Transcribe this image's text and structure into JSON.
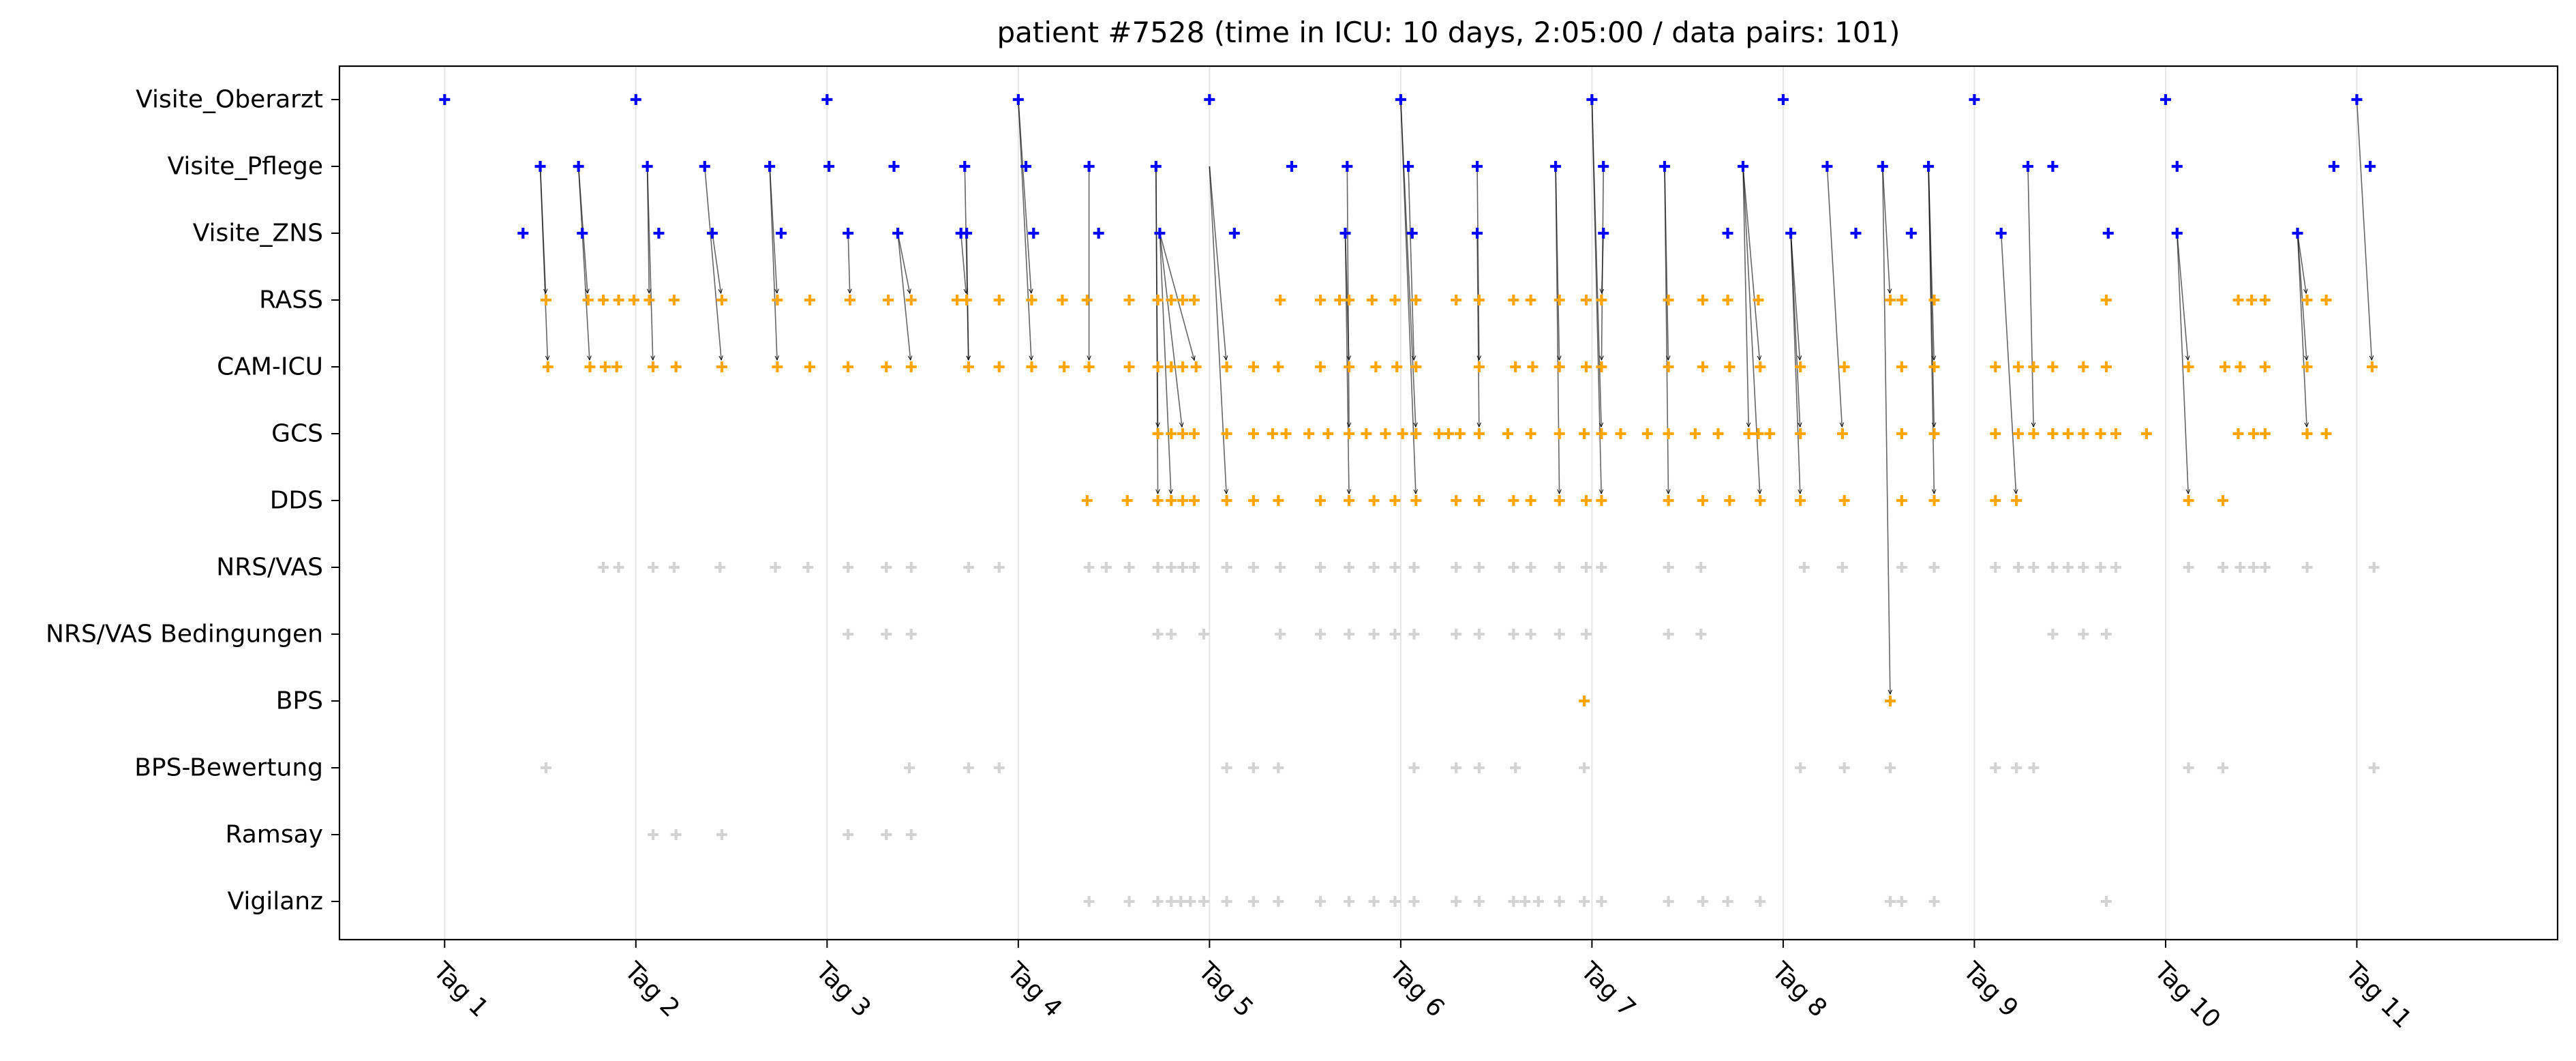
{
  "chart_data": {
    "type": "scatter",
    "title": "patient #7528 (time in ICU: 10 days, 2:05:00 / data pairs: 101)",
    "xlabel": "",
    "ylabel": "",
    "xlim": [
      0.45,
      12.05
    ],
    "x_tick_labels": [
      "Tag 1",
      "Tag 2",
      "Tag 3",
      "Tag 4",
      "Tag 5",
      "Tag 6",
      "Tag 7",
      "Tag 8",
      "Tag 9",
      "Tag 10",
      "Tag 11"
    ],
    "x_ticks": [
      1,
      2,
      3,
      4,
      5,
      6,
      7,
      8,
      9,
      10,
      11
    ],
    "vertical_grid": true,
    "categories": [
      "Visite_Oberarzt",
      "Visite_Pflege",
      "Visite_ZNS",
      "RASS",
      "CAM-ICU",
      "GCS",
      "DDS",
      "NRS/VAS",
      "NRS/VAS Bedingungen",
      "BPS",
      "BPS-Bewertung",
      "Ramsay",
      "Vigilanz"
    ],
    "colors": {
      "visit": "#0000ff",
      "paired": "#ffa500",
      "unpaired": "#d3d3d3",
      "arrow": "#000000"
    },
    "series": [
      {
        "category": "Visite_Oberarzt",
        "color": "#0000ff",
        "x": [
          1.0,
          2.0,
          3.0,
          4.0,
          5.0,
          6.0,
          7.0,
          8.0,
          9.0,
          10.0,
          11.0
        ]
      },
      {
        "category": "Visite_Pflege",
        "color": "#0000ff",
        "x": [
          1.5,
          1.7,
          2.06,
          2.36,
          2.7,
          3.01,
          3.35,
          3.72,
          4.04,
          4.37,
          4.72,
          5.43,
          5.72,
          6.04,
          6.4,
          6.81,
          7.06,
          7.38,
          7.79,
          8.23,
          8.52,
          8.76,
          9.28,
          9.41,
          10.06,
          10.88,
          11.07
        ]
      },
      {
        "category": "Visite_ZNS",
        "color": "#0000ff",
        "x": [
          1.41,
          1.72,
          2.12,
          2.4,
          2.76,
          3.11,
          3.37,
          3.7,
          3.73,
          4.08,
          4.42,
          4.74,
          5.13,
          5.71,
          6.06,
          6.4,
          7.06,
          7.71,
          8.04,
          8.38,
          8.67,
          9.14,
          9.7,
          10.06,
          10.69
        ]
      },
      {
        "category": "RASS",
        "color": "#ffa500",
        "x": [
          1.53,
          1.75,
          1.83,
          1.91,
          1.99,
          2.07,
          2.2,
          2.45,
          2.74,
          2.91,
          3.12,
          3.32,
          3.44,
          3.68,
          3.73,
          3.9,
          4.07,
          4.23,
          4.36,
          4.58,
          4.73,
          4.8,
          4.86,
          4.92,
          5.37,
          5.58,
          5.68,
          5.73,
          5.85,
          5.97,
          6.08,
          6.29,
          6.41,
          6.59,
          6.68,
          6.83,
          6.97,
          7.05,
          7.4,
          7.58,
          7.71,
          7.87,
          8.56,
          8.62,
          8.79,
          9.69,
          10.38,
          10.45,
          10.52,
          10.74,
          10.84
        ]
      },
      {
        "category": "CAM-ICU",
        "color": "#ffa500",
        "x": [
          1.54,
          1.76,
          1.84,
          1.9,
          2.09,
          2.21,
          2.45,
          2.74,
          2.91,
          3.11,
          3.31,
          3.44,
          3.74,
          3.9,
          4.07,
          4.24,
          4.37,
          4.58,
          4.73,
          4.8,
          4.86,
          4.93,
          5.09,
          5.23,
          5.36,
          5.58,
          5.73,
          5.87,
          5.98,
          6.08,
          6.41,
          6.6,
          6.69,
          6.83,
          6.97,
          7.05,
          7.4,
          7.58,
          7.72,
          7.88,
          8.09,
          8.32,
          8.62,
          8.79,
          9.11,
          9.23,
          9.31,
          9.41,
          9.57,
          9.69,
          10.12,
          10.31,
          10.39,
          10.52,
          10.74,
          11.08
        ]
      },
      {
        "category": "GCS",
        "color": "#ffa500",
        "x": [
          4.73,
          4.8,
          4.86,
          4.92,
          5.09,
          5.23,
          5.33,
          5.4,
          5.52,
          5.62,
          5.73,
          5.82,
          5.92,
          6.01,
          6.08,
          6.2,
          6.25,
          6.31,
          6.41,
          6.56,
          6.68,
          6.83,
          6.96,
          7.05,
          7.15,
          7.29,
          7.4,
          7.54,
          7.66,
          7.82,
          7.87,
          7.93,
          8.09,
          8.31,
          8.62,
          8.79,
          9.11,
          9.23,
          9.31,
          9.41,
          9.49,
          9.57,
          9.66,
          9.74,
          9.9,
          10.38,
          10.46,
          10.52,
          10.74,
          10.84
        ]
      },
      {
        "category": "DDS",
        "color": "#ffa500",
        "x": [
          4.36,
          4.57,
          4.73,
          4.8,
          4.86,
          4.92,
          5.09,
          5.23,
          5.36,
          5.58,
          5.73,
          5.86,
          5.97,
          6.08,
          6.29,
          6.41,
          6.59,
          6.68,
          6.83,
          6.97,
          7.05,
          7.4,
          7.58,
          7.72,
          7.88,
          8.09,
          8.32,
          8.62,
          8.79,
          9.11,
          9.22,
          10.12,
          10.3
        ]
      },
      {
        "category": "NRS/VAS",
        "color": "#d3d3d3",
        "x": [
          1.83,
          1.91,
          2.09,
          2.2,
          2.44,
          2.73,
          2.9,
          3.11,
          3.31,
          3.44,
          3.74,
          3.9,
          4.37,
          4.46,
          4.58,
          4.73,
          4.8,
          4.86,
          4.92,
          5.09,
          5.23,
          5.37,
          5.58,
          5.73,
          5.86,
          5.97,
          6.07,
          6.29,
          6.41,
          6.59,
          6.68,
          6.83,
          6.97,
          7.05,
          7.4,
          7.57,
          8.11,
          8.31,
          8.62,
          8.79,
          9.11,
          9.23,
          9.31,
          9.41,
          9.49,
          9.57,
          9.66,
          9.74,
          10.12,
          10.3,
          10.39,
          10.46,
          10.52,
          10.74,
          11.09
        ]
      },
      {
        "category": "NRS/VAS Bedingungen",
        "color": "#d3d3d3",
        "x": [
          3.11,
          3.31,
          3.44,
          4.73,
          4.8,
          4.97,
          5.37,
          5.58,
          5.73,
          5.86,
          5.97,
          6.07,
          6.29,
          6.41,
          6.59,
          6.68,
          6.83,
          6.97,
          7.4,
          7.57,
          9.41,
          9.57,
          9.69
        ]
      },
      {
        "category": "BPS",
        "color": "#ffa500",
        "x": [
          6.96,
          8.56
        ]
      },
      {
        "category": "BPS-Bewertung",
        "color": "#d3d3d3",
        "x": [
          1.53,
          3.43,
          3.74,
          3.9,
          5.09,
          5.23,
          5.36,
          6.07,
          6.29,
          6.41,
          6.6,
          6.96,
          8.09,
          8.32,
          8.56,
          9.11,
          9.22,
          9.31,
          10.12,
          10.3,
          11.09
        ]
      },
      {
        "category": "Ramsay",
        "color": "#d3d3d3",
        "x": [
          2.09,
          2.21,
          2.45,
          3.11,
          3.31,
          3.44
        ]
      },
      {
        "category": "Vigilanz",
        "color": "#d3d3d3",
        "x": [
          4.37,
          4.58,
          4.73,
          4.8,
          4.85,
          4.9,
          4.97,
          5.09,
          5.23,
          5.36,
          5.58,
          5.73,
          5.86,
          5.97,
          6.07,
          6.29,
          6.41,
          6.59,
          6.65,
          6.72,
          6.83,
          6.96,
          7.05,
          7.4,
          7.58,
          7.71,
          7.88,
          8.56,
          8.62,
          8.79,
          9.69
        ]
      }
    ],
    "arrows": [
      {
        "from": [
          1.5,
          "Visite_Pflege"
        ],
        "to": [
          1.53,
          "RASS"
        ]
      },
      {
        "from": [
          1.5,
          "Visite_Pflege"
        ],
        "to": [
          1.54,
          "CAM-ICU"
        ]
      },
      {
        "from": [
          1.7,
          "Visite_Pflege"
        ],
        "to": [
          1.75,
          "RASS"
        ]
      },
      {
        "from": [
          1.7,
          "Visite_Pflege"
        ],
        "to": [
          1.76,
          "CAM-ICU"
        ]
      },
      {
        "from": [
          2.06,
          "Visite_Pflege"
        ],
        "to": [
          2.09,
          "CAM-ICU"
        ]
      },
      {
        "from": [
          2.06,
          "Visite_Pflege"
        ],
        "to": [
          2.07,
          "RASS"
        ]
      },
      {
        "from": [
          2.4,
          "Visite_ZNS"
        ],
        "to": [
          2.45,
          "RASS"
        ]
      },
      {
        "from": [
          2.36,
          "Visite_Pflege"
        ],
        "to": [
          2.45,
          "CAM-ICU"
        ]
      },
      {
        "from": [
          2.7,
          "Visite_Pflege"
        ],
        "to": [
          2.74,
          "RASS"
        ]
      },
      {
        "from": [
          2.7,
          "Visite_Pflege"
        ],
        "to": [
          2.74,
          "CAM-ICU"
        ]
      },
      {
        "from": [
          3.11,
          "Visite_ZNS"
        ],
        "to": [
          3.12,
          "RASS"
        ]
      },
      {
        "from": [
          3.37,
          "Visite_ZNS"
        ],
        "to": [
          3.44,
          "RASS"
        ]
      },
      {
        "from": [
          3.37,
          "Visite_ZNS"
        ],
        "to": [
          3.44,
          "CAM-ICU"
        ]
      },
      {
        "from": [
          3.72,
          "Visite_Pflege"
        ],
        "to": [
          3.74,
          "CAM-ICU"
        ]
      },
      {
        "from": [
          3.7,
          "Visite_ZNS"
        ],
        "to": [
          3.73,
          "RASS"
        ]
      },
      {
        "from": [
          3.73,
          "Visite_ZNS"
        ],
        "to": [
          3.74,
          "CAM-ICU"
        ]
      },
      {
        "from": [
          4.0,
          "Visite_Oberarzt"
        ],
        "to": [
          4.07,
          "RASS"
        ]
      },
      {
        "from": [
          4.0,
          "Visite_Oberarzt"
        ],
        "to": [
          4.07,
          "CAM-ICU"
        ]
      },
      {
        "from": [
          4.37,
          "Visite_Pflege"
        ],
        "to": [
          4.37,
          "CAM-ICU"
        ]
      },
      {
        "from": [
          4.72,
          "Visite_Pflege"
        ],
        "to": [
          4.73,
          "GCS"
        ]
      },
      {
        "from": [
          4.72,
          "Visite_Pflege"
        ],
        "to": [
          4.73,
          "DDS"
        ]
      },
      {
        "from": [
          4.74,
          "Visite_ZNS"
        ],
        "to": [
          4.8,
          "DDS"
        ]
      },
      {
        "from": [
          4.74,
          "Visite_ZNS"
        ],
        "to": [
          4.86,
          "GCS"
        ]
      },
      {
        "from": [
          4.74,
          "Visite_ZNS"
        ],
        "to": [
          4.93,
          "CAM-ICU"
        ]
      },
      {
        "from": [
          5.0,
          "Visite_Pflege"
        ],
        "to": [
          5.09,
          "CAM-ICU"
        ]
      },
      {
        "from": [
          5.0,
          "Visite_Pflege"
        ],
        "to": [
          5.09,
          "DDS"
        ]
      },
      {
        "from": [
          5.72,
          "Visite_Pflege"
        ],
        "to": [
          5.73,
          "GCS"
        ]
      },
      {
        "from": [
          5.71,
          "Visite_ZNS"
        ],
        "to": [
          5.73,
          "DDS"
        ]
      },
      {
        "from": [
          5.71,
          "Visite_ZNS"
        ],
        "to": [
          5.73,
          "CAM-ICU"
        ]
      },
      {
        "from": [
          6.0,
          "Visite_Oberarzt"
        ],
        "to": [
          6.08,
          "GCS"
        ]
      },
      {
        "from": [
          6.0,
          "Visite_Oberarzt"
        ],
        "to": [
          6.08,
          "DDS"
        ]
      },
      {
        "from": [
          6.04,
          "Visite_Pflege"
        ],
        "to": [
          6.07,
          "CAM-ICU"
        ]
      },
      {
        "from": [
          6.4,
          "Visite_Pflege"
        ],
        "to": [
          6.41,
          "CAM-ICU"
        ]
      },
      {
        "from": [
          6.4,
          "Visite_ZNS"
        ],
        "to": [
          6.41,
          "GCS"
        ]
      },
      {
        "from": [
          6.81,
          "Visite_Pflege"
        ],
        "to": [
          6.83,
          "DDS"
        ]
      },
      {
        "from": [
          6.81,
          "Visite_Pflege"
        ],
        "to": [
          6.83,
          "CAM-ICU"
        ]
      },
      {
        "from": [
          7.0,
          "Visite_Oberarzt"
        ],
        "to": [
          7.05,
          "DDS"
        ]
      },
      {
        "from": [
          7.0,
          "Visite_Oberarzt"
        ],
        "to": [
          7.05,
          "GCS"
        ]
      },
      {
        "from": [
          7.06,
          "Visite_Pflege"
        ],
        "to": [
          7.05,
          "CAM-ICU"
        ]
      },
      {
        "from": [
          7.06,
          "Visite_ZNS"
        ],
        "to": [
          7.05,
          "RASS"
        ]
      },
      {
        "from": [
          7.38,
          "Visite_Pflege"
        ],
        "to": [
          7.4,
          "CAM-ICU"
        ]
      },
      {
        "from": [
          7.38,
          "Visite_Pflege"
        ],
        "to": [
          7.4,
          "DDS"
        ]
      },
      {
        "from": [
          7.79,
          "Visite_Pflege"
        ],
        "to": [
          7.82,
          "GCS"
        ]
      },
      {
        "from": [
          7.79,
          "Visite_Pflege"
        ],
        "to": [
          7.88,
          "DDS"
        ]
      },
      {
        "from": [
          7.79,
          "Visite_Pflege"
        ],
        "to": [
          7.88,
          "CAM-ICU"
        ]
      },
      {
        "from": [
          8.04,
          "Visite_ZNS"
        ],
        "to": [
          8.09,
          "CAM-ICU"
        ]
      },
      {
        "from": [
          8.04,
          "Visite_ZNS"
        ],
        "to": [
          8.09,
          "DDS"
        ]
      },
      {
        "from": [
          8.04,
          "Visite_ZNS"
        ],
        "to": [
          8.09,
          "GCS"
        ]
      },
      {
        "from": [
          8.23,
          "Visite_Pflege"
        ],
        "to": [
          8.31,
          "GCS"
        ]
      },
      {
        "from": [
          8.52,
          "Visite_Pflege"
        ],
        "to": [
          8.56,
          "BPS"
        ]
      },
      {
        "from": [
          8.52,
          "Visite_Pflege"
        ],
        "to": [
          8.56,
          "RASS"
        ]
      },
      {
        "from": [
          8.76,
          "Visite_Pflege"
        ],
        "to": [
          8.79,
          "CAM-ICU"
        ]
      },
      {
        "from": [
          8.76,
          "Visite_Pflege"
        ],
        "to": [
          8.79,
          "GCS"
        ]
      },
      {
        "from": [
          8.76,
          "Visite_Pflege"
        ],
        "to": [
          8.79,
          "DDS"
        ]
      },
      {
        "from": [
          9.14,
          "Visite_ZNS"
        ],
        "to": [
          9.22,
          "DDS"
        ]
      },
      {
        "from": [
          9.28,
          "Visite_Pflege"
        ],
        "to": [
          9.31,
          "GCS"
        ]
      },
      {
        "from": [
          10.06,
          "Visite_ZNS"
        ],
        "to": [
          10.12,
          "DDS"
        ]
      },
      {
        "from": [
          10.06,
          "Visite_ZNS"
        ],
        "to": [
          10.12,
          "CAM-ICU"
        ]
      },
      {
        "from": [
          10.69,
          "Visite_ZNS"
        ],
        "to": [
          10.74,
          "GCS"
        ]
      },
      {
        "from": [
          10.69,
          "Visite_ZNS"
        ],
        "to": [
          10.74,
          "CAM-ICU"
        ]
      },
      {
        "from": [
          10.69,
          "Visite_ZNS"
        ],
        "to": [
          10.74,
          "RASS"
        ]
      },
      {
        "from": [
          11.0,
          "Visite_Oberarzt"
        ],
        "to": [
          11.08,
          "CAM-ICU"
        ]
      }
    ]
  }
}
